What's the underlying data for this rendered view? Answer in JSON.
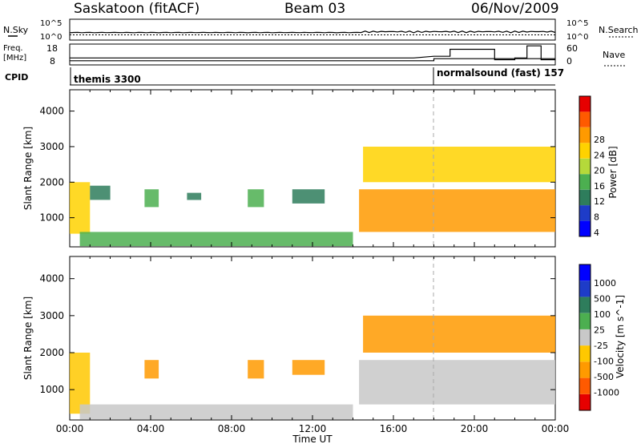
{
  "header": {
    "station": "Saskatoon (fitACF)",
    "beam": "Beam 03",
    "date": "06/Nov/2009"
  },
  "panels": {
    "nsky_label": "N.Sky",
    "nsearch_label": "N.Search",
    "noise_ticks_left": [
      "10^5",
      "10^0"
    ],
    "noise_ticks_right": [
      "10^5",
      "10^0"
    ],
    "freq_label": "Freq.",
    "freq_unit": "[MHz]",
    "freq_ticks": [
      "18",
      "8"
    ],
    "nave_label": "Nave",
    "nave_ticks": [
      "60",
      "0"
    ],
    "cpid_label": "CPID",
    "cpid_modes": [
      {
        "name": "themis 3300",
        "start_hour": 0
      },
      {
        "name": "normalsound (fast) 157",
        "start_hour": 18
      }
    ]
  },
  "axes": {
    "xlabel": "Time UT",
    "xticks": [
      "00:00",
      "04:00",
      "08:00",
      "12:00",
      "16:00",
      "20:00",
      "00:00"
    ],
    "ylabel": "Slant Range [km]",
    "yticks": [
      "1000",
      "2000",
      "3000",
      "4000"
    ]
  },
  "chart_data": [
    {
      "type": "heatmap",
      "title": "",
      "xlabel": "Time UT",
      "ylabel": "Slant Range [km]",
      "xlim": [
        0,
        24
      ],
      "ylim": [
        180,
        4600
      ],
      "colorbar": {
        "label": "Power [dB]",
        "ticks": [
          "28",
          "24",
          "20",
          "16",
          "12",
          "8",
          "4"
        ],
        "colors": [
          "#0000ff",
          "#1e3cc8",
          "#2e7d5c",
          "#4caf50",
          "#b5d93a",
          "#ffd200",
          "#ff9a00",
          "#ff5a00",
          "#e60000"
        ]
      },
      "echo_regions": [
        {
          "t0": 0.0,
          "t1": 1.0,
          "r0": 550,
          "r1": 2000,
          "value": 22
        },
        {
          "t0": 1.0,
          "t1": 2.0,
          "r0": 1500,
          "r1": 1900,
          "value": 10
        },
        {
          "t0": 3.7,
          "t1": 4.4,
          "r0": 1300,
          "r1": 1800,
          "value": 12
        },
        {
          "t0": 5.8,
          "t1": 6.5,
          "r0": 1500,
          "r1": 1700,
          "value": 8
        },
        {
          "t0": 8.8,
          "t1": 9.6,
          "r0": 1300,
          "r1": 1800,
          "value": 12
        },
        {
          "t0": 11.0,
          "t1": 12.6,
          "r0": 1400,
          "r1": 1800,
          "value": 10
        },
        {
          "t0": 0.5,
          "t1": 14.0,
          "r0": 200,
          "r1": 600,
          "value": 14
        },
        {
          "t0": 14.3,
          "t1": 24.0,
          "r0": 600,
          "r1": 1800,
          "value": 24
        },
        {
          "t0": 14.5,
          "t1": 24.0,
          "r0": 2000,
          "r1": 3000,
          "value": 22
        }
      ]
    },
    {
      "type": "heatmap",
      "title": "",
      "xlabel": "Time UT",
      "ylabel": "Slant Range [km]",
      "xlim": [
        0,
        24
      ],
      "ylim": [
        180,
        4600
      ],
      "colorbar": {
        "label": "Velocity [m s^-1]",
        "ticks": [
          "1000",
          "500",
          "100",
          "25",
          "-25",
          "-100",
          "-500",
          "-1000"
        ],
        "colors": [
          "#e60000",
          "#ff5a00",
          "#ff9a00",
          "#ffc800",
          "#c8c8c8",
          "#4caf50",
          "#2e7d5c",
          "#1e3cc8",
          "#0000ff"
        ]
      },
      "echo_regions": [
        {
          "t0": 0.0,
          "t1": 1.0,
          "r0": 350,
          "r1": 2000,
          "value": -25
        },
        {
          "t0": 3.7,
          "t1": 4.4,
          "r0": 1300,
          "r1": 1800,
          "value": -100
        },
        {
          "t0": 8.8,
          "t1": 9.6,
          "r0": 1300,
          "r1": 1800,
          "value": -100
        },
        {
          "t0": 11.0,
          "t1": 12.6,
          "r0": 1400,
          "r1": 1800,
          "value": -100
        },
        {
          "t0": 0.5,
          "t1": 14.0,
          "r0": 200,
          "r1": 600,
          "value": 0
        },
        {
          "t0": 14.3,
          "t1": 24.0,
          "r0": 600,
          "r1": 1800,
          "value": 0
        },
        {
          "t0": 14.5,
          "t1": 24.0,
          "r0": 2000,
          "r1": 3000,
          "value": -100
        }
      ]
    }
  ],
  "noise_series": {
    "description_hours": [
      0,
      24
    ],
    "nsky_level": 0.35,
    "nsearch_level": 0.25
  },
  "freq_series": {
    "hours": [
      0,
      18,
      18,
      24
    ],
    "mhz": [
      10.0,
      10.0,
      11.0,
      11.0
    ]
  },
  "nave_series": {
    "hours": [
      0,
      17,
      18,
      18.8,
      18.8,
      21.0,
      21.0,
      22.0,
      22.0,
      22.6,
      22.6,
      23.3,
      23.3,
      24
    ],
    "values": [
      20,
      20,
      25,
      25,
      45,
      45,
      15,
      15,
      20,
      20,
      55,
      55,
      15,
      15
    ]
  }
}
